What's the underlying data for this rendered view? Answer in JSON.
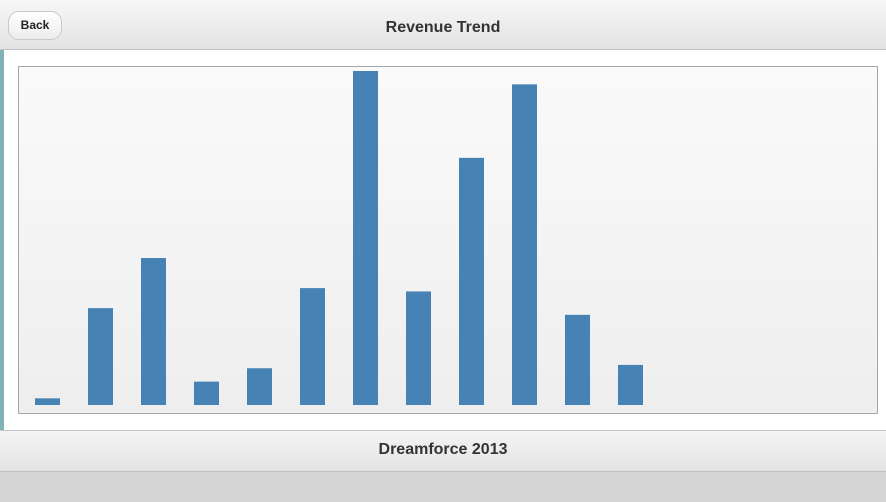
{
  "header": {
    "back_label": "Back",
    "title": "Revenue Trend"
  },
  "footer": {
    "title": "Dreamforce 2013"
  },
  "colors": {
    "bar": "#4682b4",
    "panel_border": "#a6a6a6"
  },
  "chart_data": {
    "type": "bar",
    "title": "",
    "xlabel": "",
    "ylabel": "",
    "categories": [
      "",
      "",
      "",
      "",
      "",
      "",
      "",
      "",
      "",
      "",
      "",
      ""
    ],
    "values": [
      2,
      29,
      44,
      7,
      11,
      35,
      100,
      34,
      74,
      96,
      27,
      12
    ],
    "ylim": [
      0,
      100
    ],
    "grid": false,
    "legend": "none"
  }
}
